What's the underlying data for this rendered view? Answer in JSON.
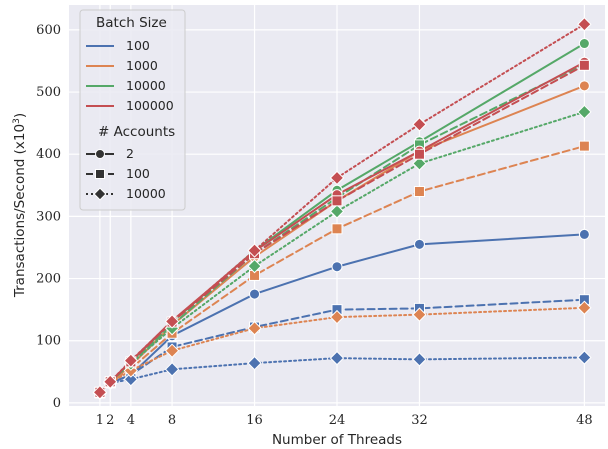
{
  "chart_data": {
    "type": "line",
    "xlabel": "Number of Threads",
    "ylabel": "Transactions/Second (x10",
    "ylabel_sup": "3",
    "ylabel_close": ")",
    "x": [
      1,
      2,
      4,
      8,
      16,
      24,
      32,
      48
    ],
    "x_tick_labels": [
      "1",
      "2",
      "4",
      "8",
      "16",
      "24",
      "32",
      "48"
    ],
    "xlim": [
      -2,
      50
    ],
    "ylim": [
      -5,
      640
    ],
    "y_ticks": [
      0,
      100,
      200,
      300,
      400,
      500,
      600
    ],
    "y_tick_labels": [
      "0",
      "100",
      "200",
      "300",
      "400",
      "500",
      "600"
    ],
    "grid": true,
    "background": "#eaeaf2",
    "legend_placement": "top-left",
    "legend": {
      "hue_title": "Batch Size",
      "hue_entries": [
        {
          "label": "100",
          "color": "#4c72b0"
        },
        {
          "label": "1000",
          "color": "#dd8452"
        },
        {
          "label": "10000",
          "color": "#55a868"
        },
        {
          "label": "100000",
          "color": "#c44e52"
        }
      ],
      "style_title": "# Accounts",
      "style_entries": [
        {
          "label": "2",
          "dash": "solid",
          "marker": "circle"
        },
        {
          "label": "100",
          "dash": "dashed",
          "marker": "square"
        },
        {
          "label": "10000",
          "dash": "dotted",
          "marker": "diamond"
        }
      ]
    },
    "series": [
      {
        "batch": "100",
        "accounts": "2",
        "color": "#4c72b0",
        "dash": "solid",
        "marker": "circle",
        "values": [
          16,
          32,
          45,
          108,
          175,
          219,
          255,
          271
        ]
      },
      {
        "batch": "100",
        "accounts": "100",
        "color": "#4c72b0",
        "dash": "dashed",
        "marker": "square",
        "values": [
          16,
          32,
          45,
          90,
          122,
          150,
          152,
          166
        ]
      },
      {
        "batch": "100",
        "accounts": "10000",
        "color": "#4c72b0",
        "dash": "dotted",
        "marker": "diamond",
        "values": [
          16,
          32,
          38,
          54,
          64,
          72,
          70,
          73
        ]
      },
      {
        "batch": "1000",
        "accounts": "2",
        "color": "#dd8452",
        "dash": "solid",
        "marker": "circle",
        "values": [
          17,
          33,
          60,
          125,
          235,
          325,
          405,
          510
        ]
      },
      {
        "batch": "1000",
        "accounts": "100",
        "color": "#dd8452",
        "dash": "dashed",
        "marker": "square",
        "values": [
          17,
          33,
          55,
          112,
          205,
          280,
          340,
          413
        ]
      },
      {
        "batch": "1000",
        "accounts": "10000",
        "color": "#dd8452",
        "dash": "dotted",
        "marker": "diamond",
        "values": [
          16,
          32,
          52,
          84,
          120,
          138,
          142,
          153
        ]
      },
      {
        "batch": "10000",
        "accounts": "2",
        "color": "#55a868",
        "dash": "solid",
        "marker": "circle",
        "values": [
          17,
          34,
          66,
          130,
          245,
          342,
          420,
          578
        ]
      },
      {
        "batch": "10000",
        "accounts": "100",
        "color": "#55a868",
        "dash": "dashed",
        "marker": "square",
        "values": [
          17,
          34,
          64,
          125,
          240,
          330,
          415,
          545
        ]
      },
      {
        "batch": "10000",
        "accounts": "10000",
        "color": "#55a868",
        "dash": "dotted",
        "marker": "diamond",
        "values": [
          17,
          34,
          63,
          120,
          220,
          308,
          385,
          468
        ]
      },
      {
        "batch": "100000",
        "accounts": "2",
        "color": "#c44e52",
        "dash": "solid",
        "marker": "circle",
        "values": [
          17,
          34,
          67,
          132,
          244,
          335,
          405,
          548
        ]
      },
      {
        "batch": "100000",
        "accounts": "100",
        "color": "#c44e52",
        "dash": "dashed",
        "marker": "square",
        "values": [
          17,
          34,
          66,
          130,
          240,
          325,
          400,
          543
        ]
      },
      {
        "batch": "100000",
        "accounts": "10000",
        "color": "#c44e52",
        "dash": "dotted",
        "marker": "diamond",
        "values": [
          17,
          34,
          68,
          131,
          245,
          362,
          448,
          609
        ]
      }
    ]
  }
}
